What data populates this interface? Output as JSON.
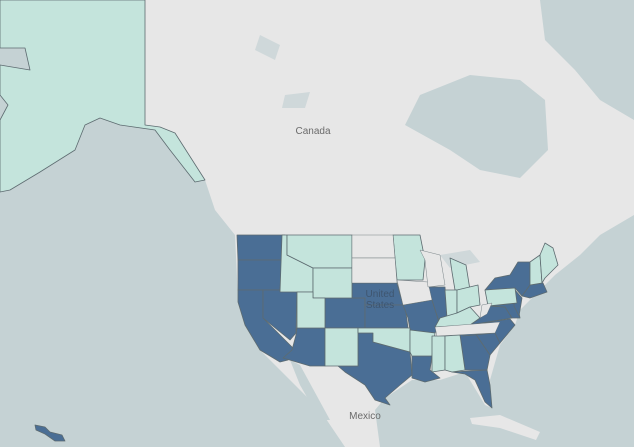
{
  "map": {
    "labels": {
      "canada": "Canada",
      "us_line1": "United",
      "us_line2": "States",
      "mexico": "Mexico"
    },
    "colors": {
      "water": "#c5d2d4",
      "land": "#e7e7e7",
      "high": "#4a6e95",
      "low": "#c4e4dc",
      "border": "#5d6b70"
    },
    "states": {
      "AK": "low",
      "HI": "high",
      "WA": "high",
      "OR": "high",
      "CA": "high",
      "NV": "high",
      "AZ": "high",
      "CO": "high",
      "NE": "high",
      "KS": "high",
      "MO": "high",
      "IL": "high",
      "TX": "high",
      "LA": "high",
      "GA": "high",
      "FL": "high",
      "SC": "high",
      "NC": "high",
      "VA": "high",
      "MD": "high",
      "NJ": "high",
      "NY": "high",
      "SNE": "high",
      "ID": "low",
      "MT": "low",
      "WY": "low",
      "UT": "low",
      "NM": "low",
      "OK": "low",
      "AR": "low",
      "MN": "low",
      "MI": "low",
      "IN": "low",
      "OH": "low",
      "KY": "low",
      "MS": "low",
      "AL": "low",
      "PA": "low",
      "VTNH": "low",
      "ME": "low",
      "ND": "none",
      "SD": "none",
      "IA": "none",
      "WI": "none",
      "TN": "none",
      "WV": "none"
    }
  }
}
